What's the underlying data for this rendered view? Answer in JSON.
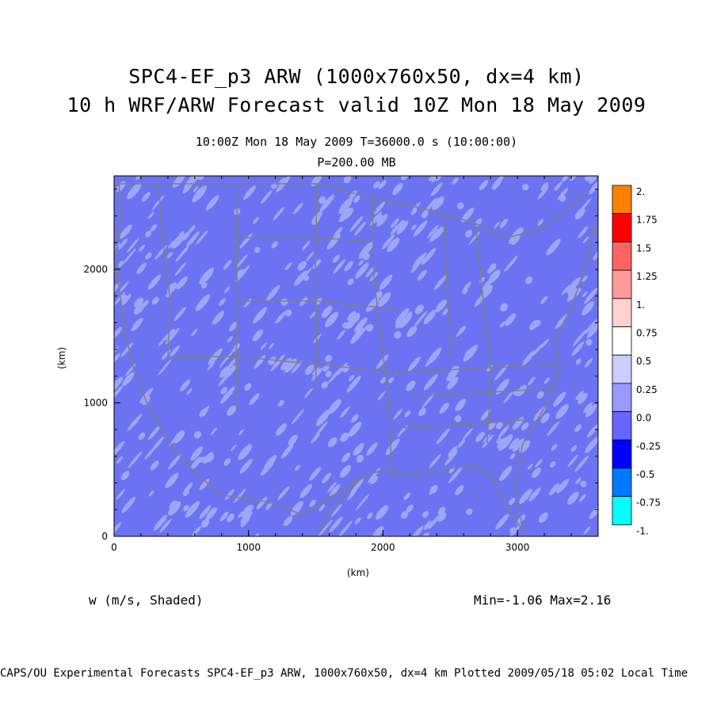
{
  "header": {
    "title_line1": "SPC4-EF_p3 ARW (1000x760x50, dx=4 km)",
    "title_line2": "10 h WRF/ARW Forecast valid 10Z Mon 18 May 2009",
    "time_line": "10:00Z Mon 18 May 2009    T=36000.0 s (10:00:00)",
    "level_line": "P=200.00 MB"
  },
  "axes": {
    "x_label": "(km)",
    "y_label": "(km)",
    "x_ticks": [
      0,
      1000,
      2000,
      3000
    ],
    "y_ticks": [
      0,
      1000,
      2000
    ],
    "x_range": [
      0,
      3600
    ],
    "y_range": [
      0,
      2700
    ]
  },
  "legend": {
    "field": "w (m/s, Shaded)",
    "stats": "Min=-1.06 Max=2.16",
    "labels": [
      "2.",
      "1.75",
      "1.5",
      "1.25",
      "1.",
      "0.75",
      "0.5",
      "0.25",
      "0.0",
      "-0.25",
      "-0.5",
      "-0.75",
      "-1."
    ],
    "colors": [
      "#ff8000",
      "#ff0000",
      "#ff6464",
      "#ff9a9a",
      "#ffd0d0",
      "#ffffff",
      "#ccccff",
      "#9999ff",
      "#6666ff",
      "#0000ff",
      "#0078ff",
      "#00ffff"
    ]
  },
  "map": {
    "base_color": "#6b73f2",
    "light_color": "#9ea6f8",
    "border_color": "#808080"
  },
  "footer": "CAPS/OU Experimental Forecasts  SPC4-EF_p3 ARW, 1000x760x50, dx=4 km  Plotted 2009/05/18 05:02 Local Time"
}
